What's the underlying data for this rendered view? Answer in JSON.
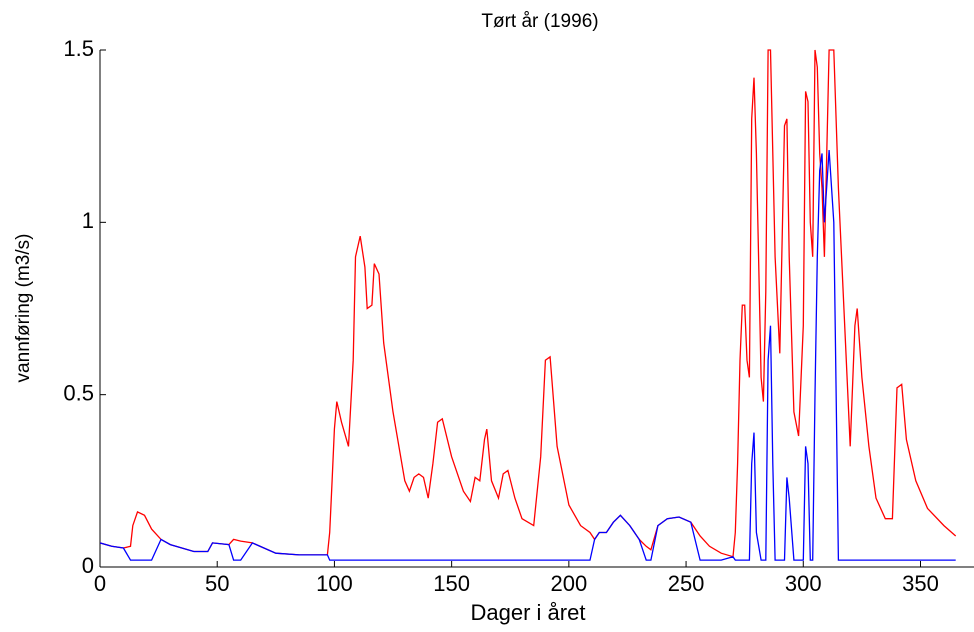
{
  "chart_data": {
    "type": "line",
    "title": "Tørt år (1996)",
    "x_label": "Dager i året",
    "y_label": "vannføring (m3/s)",
    "x": [
      0,
      5,
      10,
      13,
      14,
      16,
      19,
      22,
      26,
      30,
      40,
      46,
      48,
      55,
      57,
      60,
      65,
      75,
      85,
      90,
      97,
      98,
      99,
      100,
      101,
      103,
      106,
      108,
      109,
      111,
      113,
      114,
      116,
      117,
      119,
      121,
      125,
      130,
      132,
      134,
      136,
      138,
      140,
      142,
      144,
      146,
      150,
      155,
      158,
      160,
      162,
      164,
      165,
      167,
      170,
      172,
      174,
      177,
      180,
      185,
      188,
      190,
      192,
      195,
      200,
      205,
      209,
      211,
      213,
      216,
      219,
      222,
      226,
      230,
      233,
      235,
      238,
      242,
      247,
      252,
      256,
      260,
      265,
      270,
      271,
      272,
      273,
      274,
      275,
      276,
      277,
      278,
      279,
      280,
      282,
      283,
      284,
      285,
      286,
      287,
      288,
      290,
      292,
      293,
      294,
      296,
      298,
      300,
      301,
      302,
      303,
      304,
      305,
      306,
      307,
      308,
      309,
      311,
      313,
      315,
      318,
      320,
      322,
      323,
      325,
      328,
      331,
      335,
      338,
      340,
      342,
      344,
      348,
      353,
      360,
      365
    ],
    "series": [
      {
        "color": "#ff0000",
        "values": [
          0.07,
          0.06,
          0.055,
          0.06,
          0.12,
          0.16,
          0.15,
          0.11,
          0.08,
          0.065,
          0.045,
          0.045,
          0.07,
          0.065,
          0.08,
          0.075,
          0.07,
          0.04,
          0.035,
          0.035,
          0.035,
          0.1,
          0.25,
          0.4,
          0.48,
          0.42,
          0.35,
          0.6,
          0.9,
          0.96,
          0.87,
          0.75,
          0.76,
          0.88,
          0.85,
          0.65,
          0.45,
          0.25,
          0.22,
          0.26,
          0.27,
          0.26,
          0.2,
          0.3,
          0.42,
          0.43,
          0.32,
          0.22,
          0.19,
          0.26,
          0.25,
          0.37,
          0.4,
          0.25,
          0.2,
          0.27,
          0.28,
          0.2,
          0.14,
          0.12,
          0.32,
          0.6,
          0.61,
          0.35,
          0.18,
          0.12,
          0.1,
          0.08,
          0.1,
          0.1,
          0.13,
          0.15,
          0.12,
          0.08,
          0.06,
          0.05,
          0.12,
          0.14,
          0.145,
          0.13,
          0.09,
          0.06,
          0.04,
          0.03,
          0.1,
          0.3,
          0.6,
          0.76,
          0.76,
          0.6,
          0.55,
          1.3,
          1.42,
          1.2,
          0.55,
          0.48,
          0.8,
          1.5,
          1.5,
          1.2,
          0.9,
          0.62,
          1.28,
          1.3,
          0.9,
          0.45,
          0.38,
          0.7,
          1.38,
          1.35,
          1.0,
          0.9,
          1.5,
          1.45,
          1.2,
          1.1,
          0.9,
          1.5,
          1.5,
          1.1,
          0.65,
          0.35,
          0.7,
          0.75,
          0.55,
          0.35,
          0.2,
          0.14,
          0.14,
          0.52,
          0.53,
          0.37,
          0.25,
          0.17,
          0.12,
          0.09
        ]
      },
      {
        "color": "#0000ff",
        "values": [
          0.07,
          0.06,
          0.055,
          0.02,
          0.02,
          0.02,
          0.02,
          0.02,
          0.08,
          0.065,
          0.045,
          0.045,
          0.07,
          0.065,
          0.02,
          0.02,
          0.07,
          0.04,
          0.035,
          0.035,
          0.035,
          0.02,
          0.02,
          0.02,
          0.02,
          0.02,
          0.02,
          0.02,
          0.02,
          0.02,
          0.02,
          0.02,
          0.02,
          0.02,
          0.02,
          0.02,
          0.02,
          0.02,
          0.02,
          0.02,
          0.02,
          0.02,
          0.02,
          0.02,
          0.02,
          0.02,
          0.02,
          0.02,
          0.02,
          0.02,
          0.02,
          0.02,
          0.02,
          0.02,
          0.02,
          0.02,
          0.02,
          0.02,
          0.02,
          0.02,
          0.02,
          0.02,
          0.02,
          0.02,
          0.02,
          0.02,
          0.02,
          0.08,
          0.1,
          0.1,
          0.13,
          0.15,
          0.12,
          0.08,
          0.02,
          0.02,
          0.12,
          0.14,
          0.145,
          0.13,
          0.02,
          0.02,
          0.02,
          0.03,
          0.02,
          0.02,
          0.02,
          0.02,
          0.02,
          0.02,
          0.02,
          0.3,
          0.39,
          0.1,
          0.02,
          0.02,
          0.02,
          0.6,
          0.7,
          0.3,
          0.02,
          0.02,
          0.02,
          0.26,
          0.2,
          0.02,
          0.02,
          0.02,
          0.35,
          0.3,
          0.02,
          0.02,
          0.5,
          0.9,
          1.15,
          1.2,
          1.0,
          1.21,
          1.0,
          0.02,
          0.02,
          0.02,
          0.02,
          0.02,
          0.02,
          0.02,
          0.02,
          0.02,
          0.02,
          0.02,
          0.02,
          0.02,
          0.02,
          0.02,
          0.02,
          0.02
        ]
      }
    ],
    "xlim": [
      0,
      366
    ],
    "ylim": [
      0,
      1.5
    ],
    "xticks": [
      0,
      50,
      100,
      150,
      200,
      250,
      300,
      350
    ],
    "yticks": [
      0,
      0.5,
      1,
      1.5
    ]
  }
}
